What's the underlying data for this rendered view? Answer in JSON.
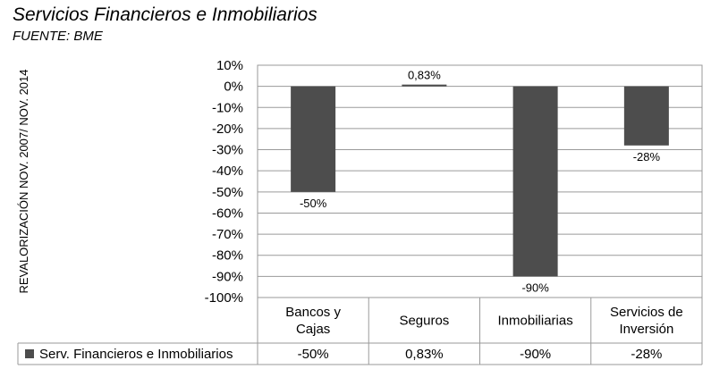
{
  "chart_data": {
    "type": "bar",
    "title": "Servicios Financieros e Inmobiliarios",
    "subtitle": "FUENTE: BME",
    "ylabel": "REVALORIZACIÓN NOV. 2007/ NOV. 2014",
    "xlabel": "",
    "categories": [
      [
        "Bancos y",
        "Cajas"
      ],
      [
        "Seguros"
      ],
      [
        "Inmobiliarias"
      ],
      [
        "Servicios de",
        "Inversión"
      ]
    ],
    "series": [
      {
        "name": "Serv. Financieros e Inmobiliarios",
        "values": [
          -50,
          0.83,
          -90,
          -28
        ],
        "labels": [
          "-50%",
          "0,83%",
          "-90%",
          "-28%"
        ],
        "color": "#4d4d4d"
      }
    ],
    "ylim": [
      -100,
      10
    ],
    "yticks": [
      10,
      0,
      -10,
      -20,
      -30,
      -40,
      -50,
      -60,
      -70,
      -80,
      -90,
      -100
    ],
    "ytick_labels": [
      "10%",
      "0%",
      "-10%",
      "-20%",
      "-30%",
      "-40%",
      "-50%",
      "-60%",
      "-70%",
      "-80%",
      "-90%",
      "-100%"
    ],
    "grid": true,
    "legend": "data-table"
  }
}
